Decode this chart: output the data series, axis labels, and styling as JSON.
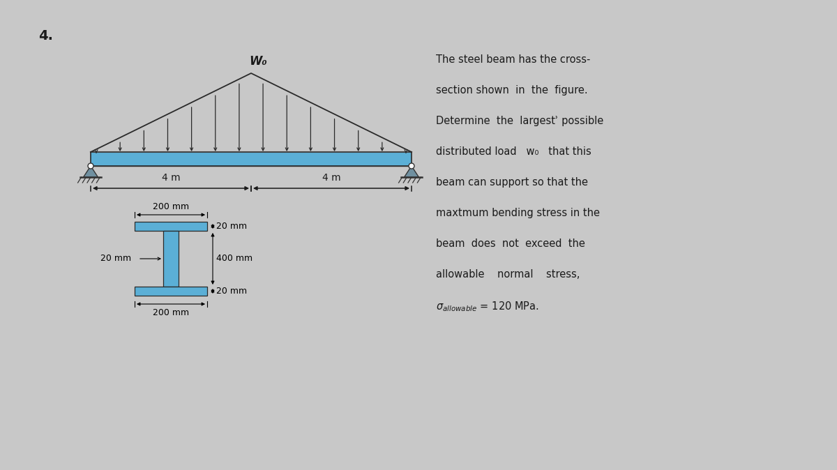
{
  "background_color": "#c8c8c8",
  "problem_number": "4.",
  "beam_color": "#5bafd6",
  "beam_outline_color": "#2a2a2a",
  "load_color": "#1a1a1a",
  "text_color": "#1a1a1a",
  "dim_color": "#1a1a1a",
  "span_left": "4 m",
  "span_right": "4 m",
  "w0_label": "W₀",
  "problem_text_lines": [
    "The steel beam has the cross-",
    "section shown  in  the  figure.",
    "Determine  the  largestʾ possible",
    "distributed load   w₀   that this",
    "beam can support so that the",
    "maxtmum bending stress in the",
    "beam  does  not  exceed  the",
    "allowable    normal    stress,",
    "σallowable = 120 MPa."
  ],
  "cross_section_dims": {
    "label_top_flange": "200 mm",
    "label_web_height": "400 mm",
    "label_web_thick": "20 mm",
    "label_flange_thick_top": "20 mm",
    "label_flange_thick_bot": "20 mm",
    "label_bot_flange": "200 mm"
  }
}
